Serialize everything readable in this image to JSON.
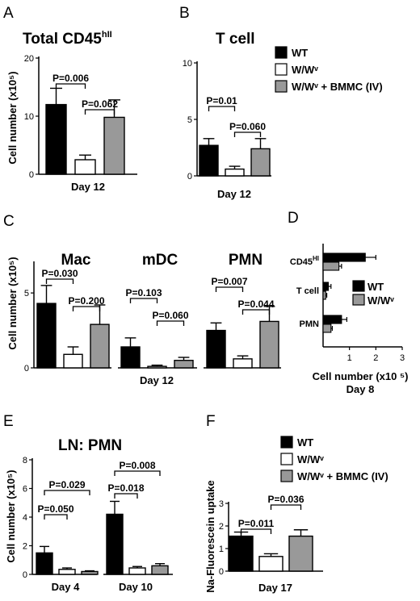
{
  "colors": {
    "WT": "#000000",
    "WWv": "#ffffff",
    "BMMC": "#999999",
    "stroke": "#000000"
  },
  "legends": {
    "B": [
      "WT",
      "W/Wᵛ",
      "W/Wᵛ + BMMC (IV)"
    ],
    "D": [
      "WT",
      "W/Wᵛ"
    ],
    "F": [
      "WT",
      "W/Wᵛ",
      "W/Wᵛ + BMMC (IV)"
    ]
  },
  "chart_data": [
    {
      "id": "A",
      "letter": "A",
      "type": "bar",
      "title": "Total CD45",
      "title_sup": "hII",
      "ylabel": "Cell number (x10⁵)",
      "xlabel": "Day 12",
      "ylim": [
        0,
        20
      ],
      "yticks": [
        "0",
        "10",
        "20"
      ],
      "series": [
        {
          "name": "WT",
          "values": [
            12
          ],
          "errors": [
            2.8
          ]
        },
        {
          "name": "W/Wᵛ",
          "values": [
            2.5
          ],
          "errors": [
            0.8
          ]
        },
        {
          "name": "W/Wᵛ + BMMC (IV)",
          "values": [
            9.8
          ],
          "errors": [
            3
          ]
        }
      ],
      "annotations": [
        {
          "label": "P=0.006",
          "from": 0,
          "to": 1
        },
        {
          "label": "P=0.062",
          "from": 1,
          "to": 2
        }
      ]
    },
    {
      "id": "B",
      "letter": "B",
      "type": "bar",
      "title": "T cell",
      "ylabel": "",
      "xlabel": "Day 12",
      "ylim": [
        0,
        10
      ],
      "yticks": [
        "0",
        "5",
        "10"
      ],
      "series": [
        {
          "name": "WT",
          "values": [
            2.7
          ],
          "errors": [
            0.6
          ]
        },
        {
          "name": "W/Wᵛ",
          "values": [
            0.6
          ],
          "errors": [
            0.25
          ]
        },
        {
          "name": "W/Wᵛ + BMMC (IV)",
          "values": [
            2.4
          ],
          "errors": [
            0.9
          ]
        }
      ],
      "annotations": [
        {
          "label": "P=0.01",
          "from": 0,
          "to": 1
        },
        {
          "label": "P=0.060",
          "from": 1,
          "to": 2
        }
      ]
    },
    {
      "id": "C",
      "letter": "C",
      "type": "bar",
      "ylabel": "Cell number (x10⁵)",
      "xlabel": "Day 12",
      "ylim": [
        0,
        7
      ],
      "yticks": [
        "0",
        "5"
      ],
      "groups": [
        {
          "name": "Mac",
          "series": [
            {
              "name": "WT",
              "values": [
                4.3
              ],
              "errors": [
                1.2
              ]
            },
            {
              "name": "W/Wᵛ",
              "values": [
                0.9
              ],
              "errors": [
                0.5
              ]
            },
            {
              "name": "W/Wᵛ + BMMC (IV)",
              "values": [
                2.9
              ],
              "errors": [
                1.3
              ]
            }
          ],
          "annotations": [
            {
              "label": "P=0.030",
              "from": 0,
              "to": 1
            },
            {
              "label": "P=0.200",
              "from": 1,
              "to": 2
            }
          ]
        },
        {
          "name": "mDC",
          "series": [
            {
              "name": "WT",
              "values": [
                1.4
              ],
              "errors": [
                0.6
              ]
            },
            {
              "name": "W/Wᵛ",
              "values": [
                0.1
              ],
              "errors": [
                0.08
              ]
            },
            {
              "name": "W/Wᵛ + BMMC (IV)",
              "values": [
                0.5
              ],
              "errors": [
                0.2
              ]
            }
          ],
          "annotations": [
            {
              "label": "P=0.103",
              "from": 0,
              "to": 1
            },
            {
              "label": "P=0.060",
              "from": 1,
              "to": 2
            }
          ]
        },
        {
          "name": "PMN",
          "series": [
            {
              "name": "WT",
              "values": [
                2.5
              ],
              "errors": [
                0.5
              ]
            },
            {
              "name": "W/Wᵛ",
              "values": [
                0.6
              ],
              "errors": [
                0.2
              ]
            },
            {
              "name": "W/Wᵛ + BMMC (IV)",
              "values": [
                3.1
              ],
              "errors": [
                1
              ]
            }
          ],
          "annotations": [
            {
              "label": "P=0.007",
              "from": 0,
              "to": 1
            },
            {
              "label": "P=0.044",
              "from": 1,
              "to": 2
            }
          ]
        }
      ]
    },
    {
      "id": "D",
      "letter": "D",
      "type": "bar",
      "orientation": "horizontal",
      "xlabel": "Cell number (x10 ⁵)",
      "xlabel2": "Day 8",
      "xlim": [
        0,
        3
      ],
      "xticks": [
        "1",
        "2",
        "3"
      ],
      "categories": [
        "CD45",
        "T cell",
        "PMN"
      ],
      "category_sup": [
        "HI",
        "",
        ""
      ],
      "series": [
        {
          "name": "WT",
          "values": [
            1.6,
            0.2,
            0.7
          ],
          "errors": [
            0.4,
            0.1,
            0.2
          ]
        },
        {
          "name": "W/Wᵛ",
          "values": [
            0.6,
            0.1,
            0.3
          ],
          "errors": [
            0.1,
            0.04,
            0.05
          ]
        }
      ]
    },
    {
      "id": "E",
      "letter": "E",
      "type": "bar",
      "title": "LN: PMN",
      "ylabel": "Cell number (x10⁵)",
      "ylim": [
        0,
        8
      ],
      "yticks": [
        "0",
        "2",
        "4",
        "6",
        "8"
      ],
      "groups": [
        {
          "name": "Day 4",
          "series": [
            {
              "name": "WT",
              "values": [
                1.5
              ],
              "errors": [
                0.45
              ]
            },
            {
              "name": "W/Wᵛ",
              "values": [
                0.35
              ],
              "errors": [
                0.1
              ]
            },
            {
              "name": "W/Wᵛ + BMMC (IV)",
              "values": [
                0.2
              ],
              "errors": [
                0.05
              ]
            }
          ],
          "annotations": [
            {
              "label": "P=0.050",
              "from": 0,
              "to": 1
            },
            {
              "label": "P=0.029",
              "from": 0,
              "to": 2
            }
          ]
        },
        {
          "name": "Day 10",
          "series": [
            {
              "name": "WT",
              "values": [
                4.2
              ],
              "errors": [
                0.9
              ]
            },
            {
              "name": "W/Wᵛ",
              "values": [
                0.45
              ],
              "errors": [
                0.1
              ]
            },
            {
              "name": "W/Wᵛ + BMMC (IV)",
              "values": [
                0.6
              ],
              "errors": [
                0.15
              ]
            }
          ],
          "annotations": [
            {
              "label": "P=0.018",
              "from": 0,
              "to": 1
            },
            {
              "label": "P=0.008",
              "from": 0,
              "to": 2
            }
          ]
        }
      ]
    },
    {
      "id": "F",
      "letter": "F",
      "type": "bar",
      "ylabel": "Na-Fluorescein uptake",
      "xlabel": "Day 17",
      "ylim": [
        0,
        3
      ],
      "yticks": [
        "0",
        "1",
        "2",
        "3"
      ],
      "series": [
        {
          "name": "WT",
          "values": [
            1.55
          ],
          "errors": [
            0.18
          ]
        },
        {
          "name": "W/Wᵛ",
          "values": [
            0.65
          ],
          "errors": [
            0.12
          ]
        },
        {
          "name": "W/Wᵛ + BMMC (IV)",
          "values": [
            1.55
          ],
          "errors": [
            0.28
          ]
        }
      ],
      "annotations": [
        {
          "label": "P=0.011",
          "from": 0,
          "to": 1
        },
        {
          "label": "P=0.036",
          "from": 1,
          "to": 2
        }
      ]
    }
  ]
}
